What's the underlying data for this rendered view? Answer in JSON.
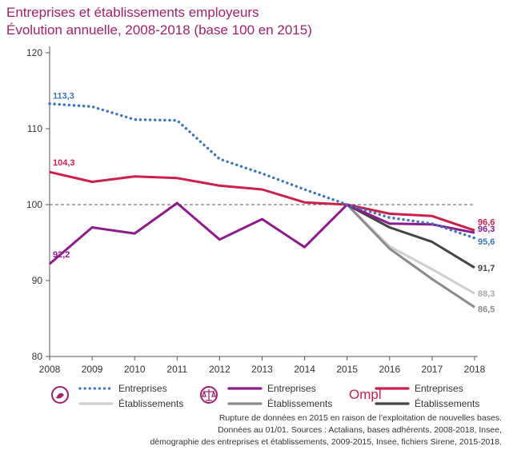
{
  "title_line1": "Entreprises et établissements employeurs",
  "title_line2": "Évolution annuelle, 2008-2018 (base 100 en 2015)",
  "notes": [
    "Rupture de données en 2015 en raison de l’exploitation de nouvelles bases.",
    "Données au 01/01. Sources : Actalians, bases adhérents, 2008-2018, Insee,",
    "démographie des entreprises et établissements, 2009-2015, Insee, fichiers Sirene, 2015-2018."
  ],
  "colors": {
    "title": "#a4206f",
    "blue": "#3b72c2",
    "light_grey": "#cfcfcf",
    "purple": "#8e1a8e",
    "mid_grey": "#8a8a8a",
    "red": "#cc1f4a",
    "dark_grey": "#444444",
    "axis": "#555555"
  },
  "chart_data": {
    "type": "line",
    "x": [
      2008,
      2009,
      2010,
      2011,
      2012,
      2013,
      2014,
      2015,
      2016,
      2017,
      2018
    ],
    "ylim": [
      80,
      120
    ],
    "yticks": [
      80,
      90,
      100,
      110,
      120
    ],
    "xlabel": "",
    "ylabel": "",
    "grid": false,
    "reference_line": 100,
    "series": [
      {
        "name": "Entreprises",
        "group": "Actalians",
        "color": "#3b72c2",
        "style": "dotted",
        "values": [
          113.3,
          112.9,
          111.2,
          111.1,
          106.0,
          104.1,
          102.0,
          100,
          98.3,
          97.5,
          95.6
        ],
        "labels": {
          "2008": "113,3",
          "2018": "95,6"
        }
      },
      {
        "name": "Établissements",
        "group": "Actalians",
        "color": "#cfcfcf",
        "style": "solid",
        "values": [
          null,
          null,
          null,
          null,
          null,
          null,
          null,
          100,
          94.5,
          91.5,
          88.3
        ],
        "labels": {
          "2018": "88,3"
        }
      },
      {
        "name": "Entreprises",
        "group": "Ordre",
        "color": "#8e1a8e",
        "style": "solid",
        "values": [
          92.2,
          97.0,
          96.2,
          100.2,
          95.4,
          98.1,
          94.4,
          100,
          97.5,
          97.4,
          96.3
        ],
        "labels": {
          "2008": "92,2",
          "2018": "96,3"
        }
      },
      {
        "name": "Établissements",
        "group": "Ordre",
        "color": "#8a8a8a",
        "style": "solid",
        "values": [
          null,
          null,
          null,
          null,
          null,
          null,
          null,
          100,
          94.2,
          90.2,
          86.5
        ],
        "labels": {
          "2018": "86,5"
        }
      },
      {
        "name": "Entreprises",
        "group": "OMPL",
        "color": "#cc1f4a",
        "style": "solid",
        "values": [
          104.3,
          103.0,
          103.7,
          103.5,
          102.5,
          102.0,
          100.3,
          100,
          98.8,
          98.5,
          96.6
        ],
        "labels": {
          "2008": "104,3",
          "2018": "96,6"
        }
      },
      {
        "name": "Établissements",
        "group": "OMPL",
        "color": "#444444",
        "style": "solid",
        "values": [
          null,
          null,
          null,
          null,
          null,
          null,
          null,
          100,
          97.0,
          95.1,
          91.7
        ],
        "labels": {
          "2018": "91,7"
        }
      }
    ],
    "legend": {
      "placement": "bottom",
      "groups": [
        {
          "icon": "actalians-logo-icon",
          "entries": [
            "Entreprises",
            "Établissements"
          ]
        },
        {
          "icon": "balance-scale-icon",
          "entries": [
            "Entreprises",
            "Établissements"
          ]
        },
        {
          "icon": "ompl-logo",
          "logo_text": "Ompl",
          "entries": [
            "Entreprises",
            "Établissements"
          ]
        }
      ]
    }
  }
}
